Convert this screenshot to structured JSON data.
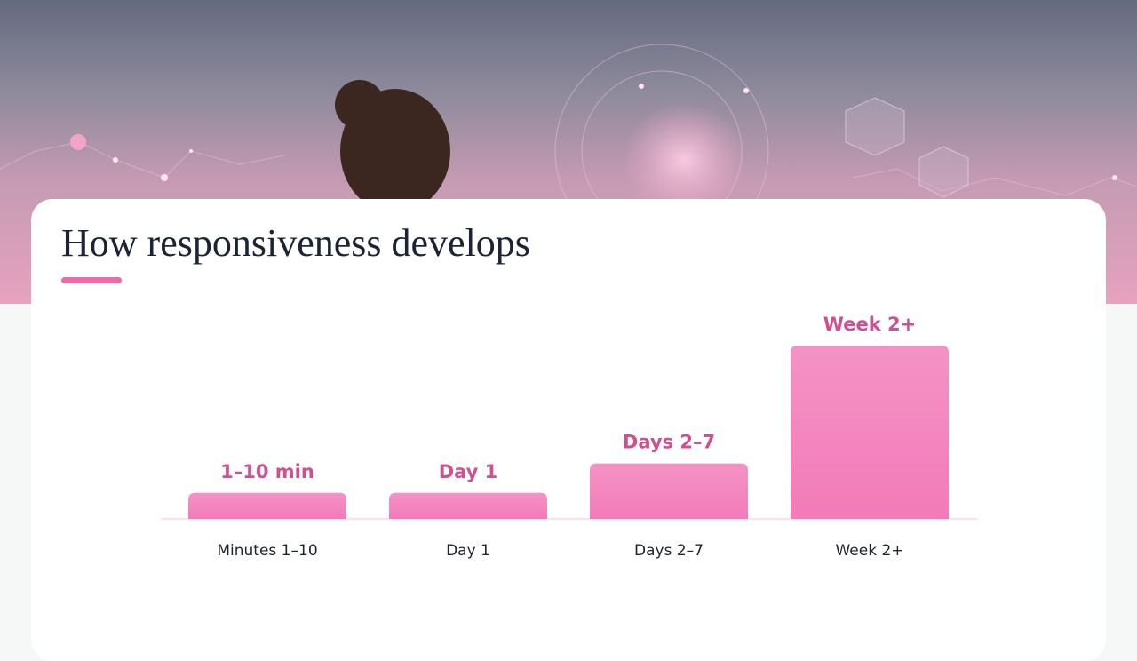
{
  "chart_data": {
    "type": "bar",
    "title": "How responsiveness develops",
    "categories": [
      "Minutes 1–10",
      "Day 1",
      "Days 2–7",
      "Week 2+"
    ],
    "stage_labels": [
      "1–10 min",
      "Day 1",
      "Days 2–7",
      "Week 2+"
    ],
    "values": [
      15,
      15,
      32,
      100
    ],
    "color": "#f27bb8"
  }
}
